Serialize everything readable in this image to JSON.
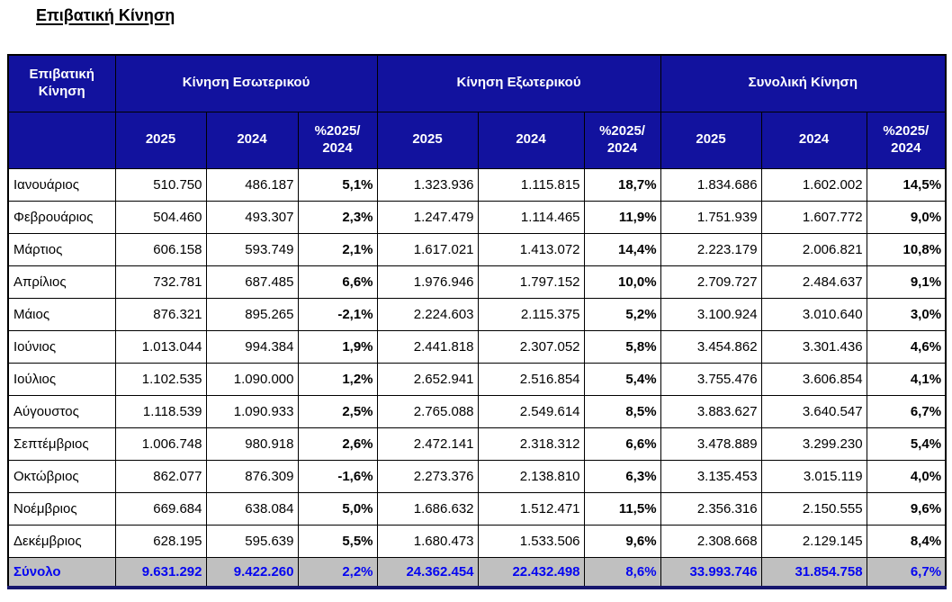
{
  "title": "Επιβατική Κίνηση",
  "colors": {
    "header_bg": "#12129e",
    "header_text": "#ffffff",
    "total_row_bg": "#c0c0c0",
    "total_row_text": "#0505f0",
    "border": "#000000"
  },
  "table": {
    "corner_label": "Επιβατική Κίνηση",
    "groups": [
      {
        "label": "Κίνηση Εσωτερικού"
      },
      {
        "label": "Κίνηση Εξωτερικού"
      },
      {
        "label": "Συνολική Κίνηση"
      }
    ],
    "sub_headers": [
      "2025",
      "2024",
      "%2025/ 2024"
    ],
    "rows": [
      {
        "month": "Ιανουάριος",
        "values": [
          "510.750",
          "486.187",
          "5,1%",
          "1.323.936",
          "1.115.815",
          "18,7%",
          "1.834.686",
          "1.602.002",
          "14,5%"
        ]
      },
      {
        "month": "Φεβρουάριος",
        "values": [
          "504.460",
          "493.307",
          "2,3%",
          "1.247.479",
          "1.114.465",
          "11,9%",
          "1.751.939",
          "1.607.772",
          "9,0%"
        ]
      },
      {
        "month": "Μάρτιος",
        "values": [
          "606.158",
          "593.749",
          "2,1%",
          "1.617.021",
          "1.413.072",
          "14,4%",
          "2.223.179",
          "2.006.821",
          "10,8%"
        ]
      },
      {
        "month": "Απρίλιος",
        "values": [
          "732.781",
          "687.485",
          "6,6%",
          "1.976.946",
          "1.797.152",
          "10,0%",
          "2.709.727",
          "2.484.637",
          "9,1%"
        ]
      },
      {
        "month": "Μάιος",
        "values": [
          "876.321",
          "895.265",
          "-2,1%",
          "2.224.603",
          "2.115.375",
          "5,2%",
          "3.100.924",
          "3.010.640",
          "3,0%"
        ]
      },
      {
        "month": "Ιούνιος",
        "values": [
          "1.013.044",
          "994.384",
          "1,9%",
          "2.441.818",
          "2.307.052",
          "5,8%",
          "3.454.862",
          "3.301.436",
          "4,6%"
        ]
      },
      {
        "month": "Ιούλιος",
        "values": [
          "1.102.535",
          "1.090.000",
          "1,2%",
          "2.652.941",
          "2.516.854",
          "5,4%",
          "3.755.476",
          "3.606.854",
          "4,1%"
        ]
      },
      {
        "month": "Αύγουστος",
        "values": [
          "1.118.539",
          "1.090.933",
          "2,5%",
          "2.765.088",
          "2.549.614",
          "8,5%",
          "3.883.627",
          "3.640.547",
          "6,7%"
        ]
      },
      {
        "month": "Σεπτέμβριος",
        "values": [
          "1.006.748",
          "980.918",
          "2,6%",
          "2.472.141",
          "2.318.312",
          "6,6%",
          "3.478.889",
          "3.299.230",
          "5,4%"
        ]
      },
      {
        "month": "Οκτώβριος",
        "values": [
          "862.077",
          "876.309",
          "-1,6%",
          "2.273.376",
          "2.138.810",
          "6,3%",
          "3.135.453",
          "3.015.119",
          "4,0%"
        ]
      },
      {
        "month": "Νοέμβριος",
        "values": [
          "669.684",
          "638.084",
          "5,0%",
          "1.686.632",
          "1.512.471",
          "11,5%",
          "2.356.316",
          "2.150.555",
          "9,6%"
        ]
      },
      {
        "month": "Δεκέμβριος",
        "values": [
          "628.195",
          "595.639",
          "5,5%",
          "1.680.473",
          "1.533.506",
          "9,6%",
          "2.308.668",
          "2.129.145",
          "8,4%"
        ]
      }
    ],
    "total_row": {
      "month": "Σύνολο",
      "values": [
        "9.631.292",
        "9.422.260",
        "2,2%",
        "24.362.454",
        "22.432.498",
        "8,6%",
        "33.993.746",
        "31.854.758",
        "6,7%"
      ]
    }
  }
}
